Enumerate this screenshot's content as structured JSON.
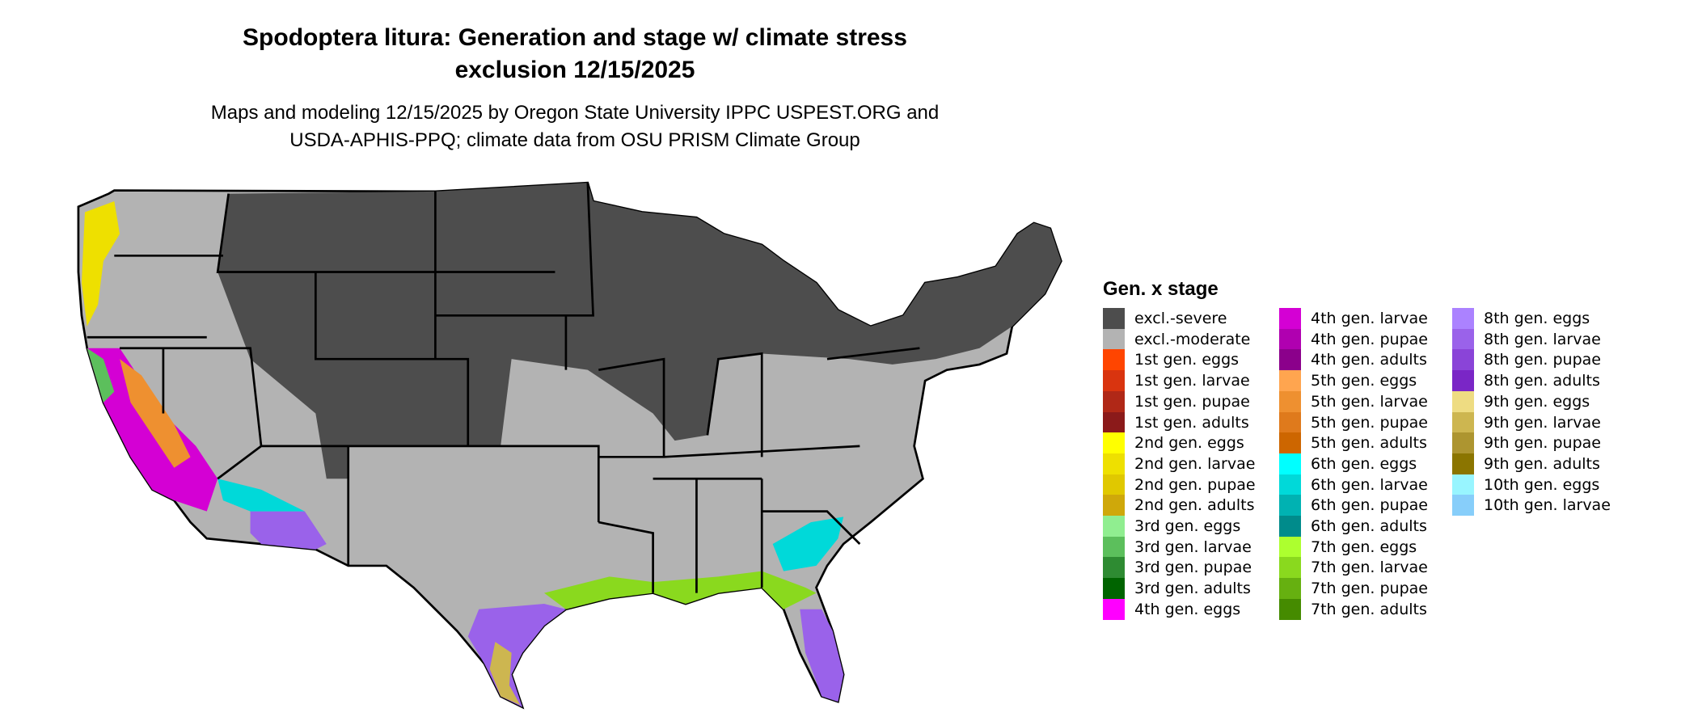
{
  "title": {
    "line1": "Spodoptera litura: Generation and stage w/ climate stress",
    "line2": "exclusion 12/15/2025"
  },
  "subtitle": {
    "line1": "Maps and modeling 12/15/2025 by Oregon State University IPPC USPEST.ORG and",
    "line2": "USDA-APHIS-PPQ; climate data from OSU PRISM Climate Group"
  },
  "map": {
    "region": "Contiguous United States",
    "colors": {
      "severe": "#4d4d4d",
      "moderate": "#b3b3b3",
      "border": "#000000"
    }
  },
  "legend": {
    "title": "Gen. x stage",
    "items": [
      {
        "label": "excl.-severe",
        "color": "#4d4d4d"
      },
      {
        "label": "excl.-moderate",
        "color": "#b3b3b3"
      },
      {
        "label": "1st gen. eggs",
        "color": "#ff4500"
      },
      {
        "label": "1st gen. larvae",
        "color": "#d9340f"
      },
      {
        "label": "1st gen. pupae",
        "color": "#b02817"
      },
      {
        "label": "1st gen. adults",
        "color": "#8b1a1a"
      },
      {
        "label": "2nd gen. eggs",
        "color": "#ffff00"
      },
      {
        "label": "2nd gen. larvae",
        "color": "#eee000"
      },
      {
        "label": "2nd gen. pupae",
        "color": "#e0c800"
      },
      {
        "label": "2nd gen. adults",
        "color": "#cfa80a"
      },
      {
        "label": "3rd gen. eggs",
        "color": "#90ee90"
      },
      {
        "label": "3rd gen. larvae",
        "color": "#5cbf5c"
      },
      {
        "label": "3rd gen. pupae",
        "color": "#2e8b32"
      },
      {
        "label": "3rd gen. adults",
        "color": "#006400"
      },
      {
        "label": "4th gen. eggs",
        "color": "#ff00ff"
      },
      {
        "label": "4th gen. larvae",
        "color": "#d400d4"
      },
      {
        "label": "4th gen. pupae",
        "color": "#b000b0"
      },
      {
        "label": "4th gen. adults",
        "color": "#8b008b"
      },
      {
        "label": "5th gen. eggs",
        "color": "#ffa54f"
      },
      {
        "label": "5th gen. larvae",
        "color": "#ee9030"
      },
      {
        "label": "5th gen. pupae",
        "color": "#df7a1c"
      },
      {
        "label": "5th gen. adults",
        "color": "#cd6600"
      },
      {
        "label": "6th gen. eggs",
        "color": "#00ffff"
      },
      {
        "label": "6th gen. larvae",
        "color": "#00d9d9"
      },
      {
        "label": "6th gen. pupae",
        "color": "#00b2b2"
      },
      {
        "label": "6th gen. adults",
        "color": "#008b8b"
      },
      {
        "label": "7th gen. eggs",
        "color": "#adff2f"
      },
      {
        "label": "7th gen. larvae",
        "color": "#8ad91e"
      },
      {
        "label": "7th gen. pupae",
        "color": "#66b010"
      },
      {
        "label": "7th gen. adults",
        "color": "#458b00"
      },
      {
        "label": "8th gen. eggs",
        "color": "#ab82ff"
      },
      {
        "label": "8th gen. larvae",
        "color": "#9a62ea"
      },
      {
        "label": "8th gen. pupae",
        "color": "#8a44d8"
      },
      {
        "label": "8th gen. adults",
        "color": "#7a26c6"
      },
      {
        "label": "9th gen. eggs",
        "color": "#eedc82"
      },
      {
        "label": "9th gen. larvae",
        "color": "#cdb650"
      },
      {
        "label": "9th gen. pupae",
        "color": "#ad9530"
      },
      {
        "label": "9th gen. adults",
        "color": "#8b7500"
      },
      {
        "label": "10th gen. eggs",
        "color": "#98f5ff"
      },
      {
        "label": "10th gen. larvae",
        "color": "#87cefa"
      }
    ]
  }
}
